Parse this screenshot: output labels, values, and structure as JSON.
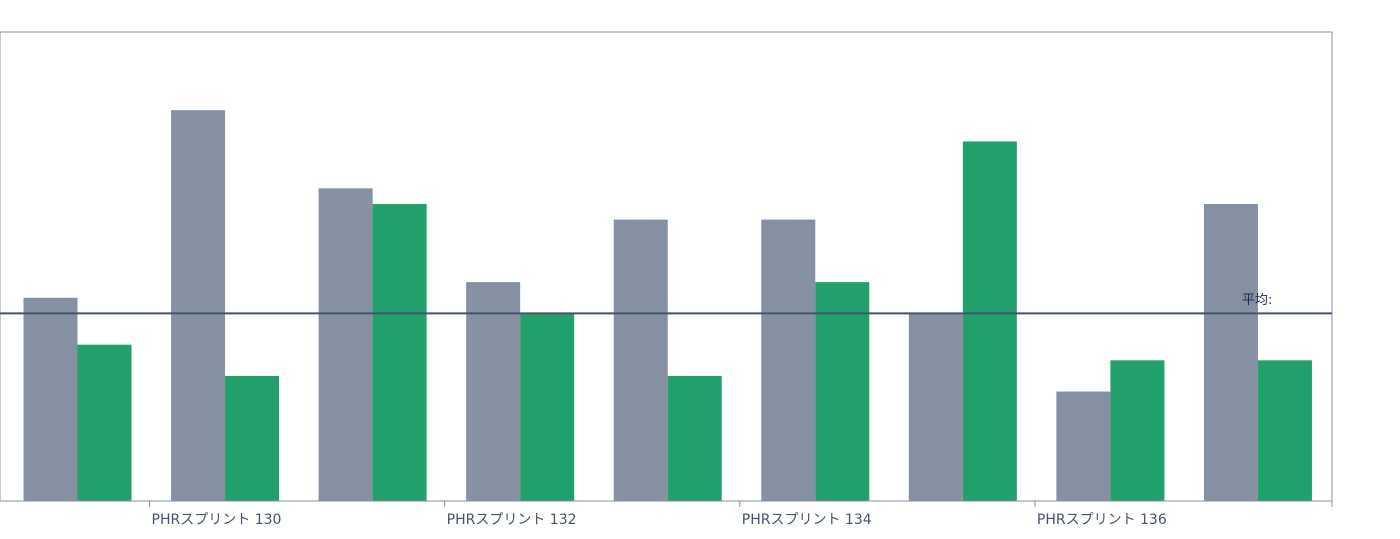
{
  "chart_data": {
    "type": "bar",
    "categories": [
      null,
      "PHRスプリント 130",
      null,
      "PHRスプリント 132",
      null,
      "PHRスプリント 134",
      null,
      "PHRスプリント 136",
      null
    ],
    "series": [
      {
        "color": "#8590a2",
        "values": [
          13,
          25,
          20,
          14,
          18,
          18,
          12,
          7,
          19
        ]
      },
      {
        "color": "#22a06b",
        "values": [
          10,
          8,
          19,
          12,
          8,
          14,
          23,
          9,
          9
        ]
      }
    ],
    "ylim": [
      0,
      30
    ],
    "average_line": {
      "label": "平均:",
      "value": 12,
      "color": "#44546f"
    }
  }
}
